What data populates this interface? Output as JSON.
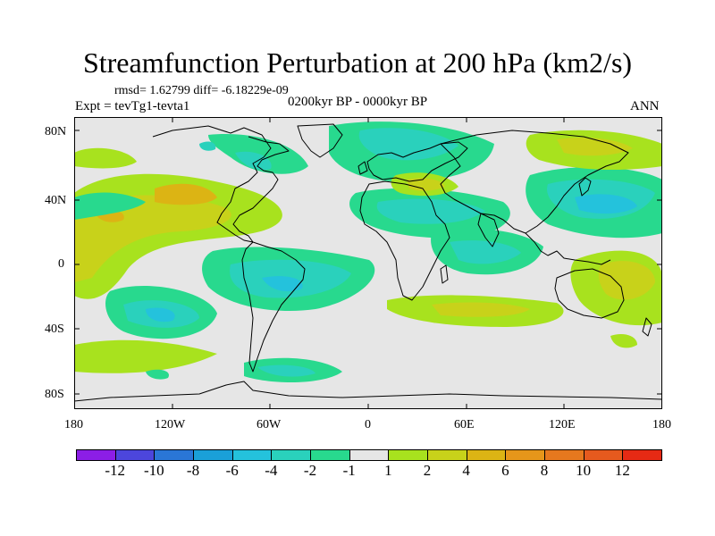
{
  "title": "Streamfunction Perturbation at 200 hPa (km2/s)",
  "stats_text": "rmsd= 1.62799 diff= -6.18229e-09",
  "experiment": "Expt = tevTg1-tevta1",
  "period": "0200kyr BP - 0000kyr BP",
  "season": "ANN",
  "map": {
    "lat_labels": [
      "80N",
      "40N",
      "0",
      "40S",
      "80S"
    ],
    "lon_labels": [
      "180",
      "120W",
      "60W",
      "0",
      "60E",
      "120E",
      "180"
    ],
    "background_color": "#e6e6e6"
  },
  "legend": {
    "labels": [
      "-12",
      "-10",
      "-8",
      "-6",
      "-4",
      "-2",
      "-1",
      "1",
      "2",
      "4",
      "6",
      "8",
      "10",
      "12"
    ],
    "colors": [
      "#8c1ee6",
      "#4c46dc",
      "#2a76d6",
      "#1aa0d8",
      "#24c2dc",
      "#2ad1bc",
      "#28d98e",
      "#e6e6e6",
      "#a8e21e",
      "#c8d21a",
      "#dcb414",
      "#e6961a",
      "#e6781e",
      "#e65a1e",
      "#e62a14"
    ]
  }
}
